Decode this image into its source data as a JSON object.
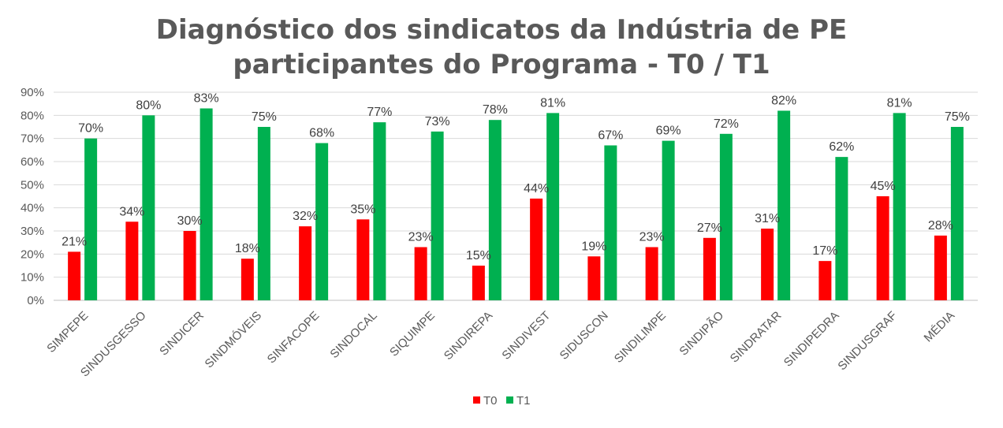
{
  "title": {
    "line1": "Diagnóstico dos sindicatos da Indústria de PE",
    "line2": "participantes do Programa - T0 / T1"
  },
  "chart_data": {
    "type": "bar",
    "title": "Diagnóstico dos sindicatos da Indústria de PE participantes do Programa - T0 / T1",
    "categories": [
      "SIMPEPE",
      "SINDUSGESSO",
      "SINDICER",
      "SINDMÓVEIS",
      "SINFACOPE",
      "SINDOCAL",
      "SIQUIMPE",
      "SINDIREPA",
      "SINDIVEST",
      "SIDUSCON",
      "SINDILIMPE",
      "SINDIPÃO",
      "SINDRATAR",
      "SINDIPEDRA",
      "SINDUSGRAF",
      "MÉDIA"
    ],
    "series": [
      {
        "name": "T0",
        "color": "#ff0000",
        "values": [
          21,
          34,
          30,
          18,
          32,
          35,
          23,
          15,
          44,
          19,
          23,
          27,
          31,
          17,
          45,
          28
        ],
        "labels": [
          "21%",
          "34%",
          "30%",
          "18%",
          "32%",
          "35%",
          "23%",
          "15%",
          "44%",
          "19%",
          "23%",
          "27%",
          "31%",
          "17%",
          "45%",
          "28%"
        ]
      },
      {
        "name": "T1",
        "color": "#00b050",
        "values": [
          70,
          80,
          83,
          75,
          68,
          77,
          73,
          78,
          81,
          67,
          69,
          72,
          82,
          62,
          81,
          75
        ],
        "labels": [
          "70%",
          "80%",
          "83%",
          "75%",
          "68%",
          "77%",
          "73%",
          "78%",
          "81%",
          "67%",
          "69%",
          "72%",
          "82%",
          "62%",
          "81%",
          "75%"
        ]
      }
    ],
    "ylim": [
      0,
      90
    ],
    "yticks": [
      "0%",
      "10%",
      "20%",
      "30%",
      "40%",
      "50%",
      "60%",
      "70%",
      "80%",
      "90%"
    ],
    "grid": true,
    "legend": "bottom-center"
  }
}
